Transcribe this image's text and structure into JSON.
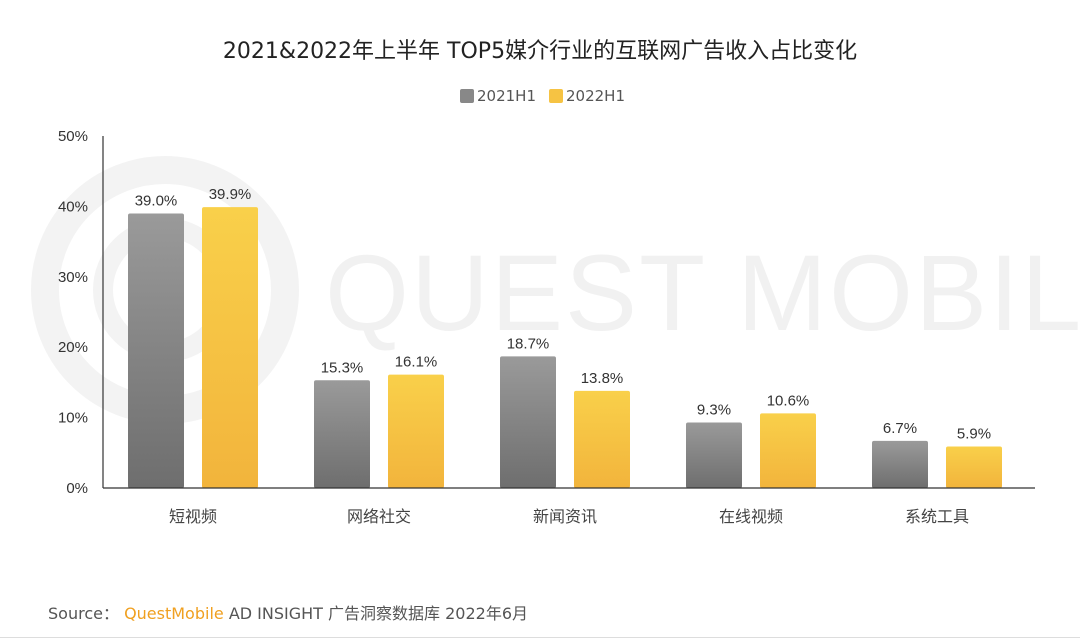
{
  "chart_data": {
    "type": "bar",
    "title": "2021&2022年上半年 TOP5媒介行业的互联网广告收入占比变化",
    "categories": [
      "短视频",
      "网络社交",
      "新闻资讯",
      "在线视频",
      "系统工具"
    ],
    "series": [
      {
        "name": "2021H1",
        "values": [
          39.0,
          15.3,
          18.7,
          9.3,
          6.7
        ],
        "labels": [
          "39.0%",
          "15.3%",
          "18.7%",
          "9.3%",
          "6.7%"
        ],
        "color_top": "#9a9a9a",
        "color_bottom": "#6e6e6e"
      },
      {
        "name": "2022H1",
        "values": [
          39.9,
          16.1,
          13.8,
          10.6,
          5.9
        ],
        "labels": [
          "39.9%",
          "16.1%",
          "13.8%",
          "10.6%",
          "5.9%"
        ],
        "color_top": "#f9d04a",
        "color_bottom": "#f2b43c"
      }
    ],
    "ylim": [
      0,
      50
    ],
    "yticks": [
      0,
      10,
      20,
      30,
      40,
      50
    ],
    "ytick_labels": [
      "0%",
      "10%",
      "20%",
      "30%",
      "40%",
      "50%"
    ],
    "xlabel": "",
    "ylabel": "",
    "legend_position": "top-center",
    "grid": false
  },
  "watermark": "QUEST MOBILE",
  "source": {
    "prefix": "Source：",
    "brand": "QuestMobile",
    "rest": " AD INSIGHT 广告洞察数据库 2022年6月"
  }
}
